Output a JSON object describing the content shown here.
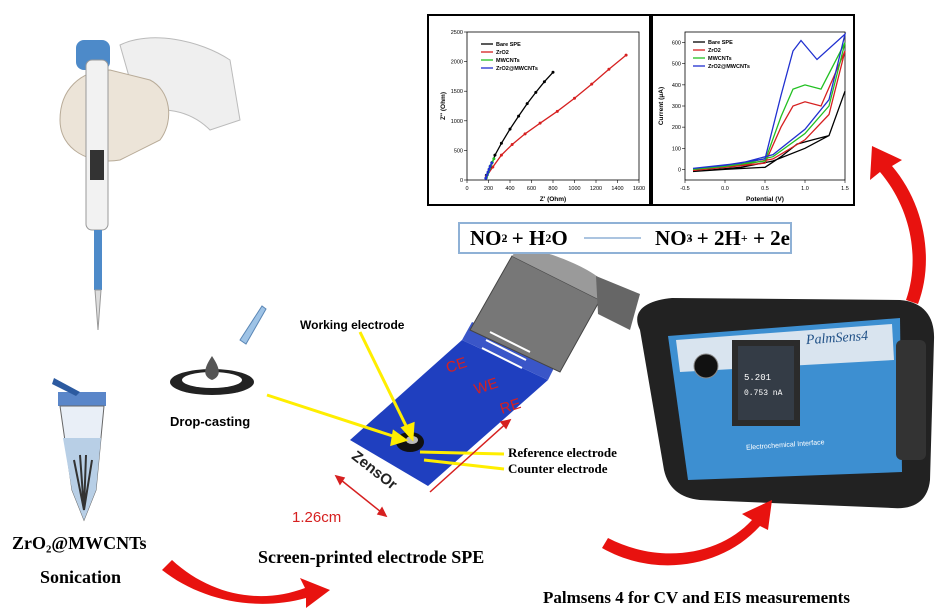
{
  "equation": {
    "left": "NO",
    "left_sub": "2",
    "left_sup": "-",
    "plus1": " + H",
    "h2o_sub": "2",
    "o": "O",
    "right": "NO",
    "right_sub": "3",
    "right_sup": "-",
    "plus2": " + 2H",
    "h_sup": "+",
    "tail": " + 2e"
  },
  "labels": {
    "working_electrode": "Working electrode",
    "drop_casting": "Drop-casting",
    "reference_electrode": "Reference electrode",
    "counter_electrode": "Counter electrode",
    "ce": "CE",
    "we": "WE",
    "re": "RE",
    "dimension": "1.26cm",
    "brand": "ZensOr",
    "material": "ZrO₂@MWCNTs",
    "sonication": "Sonication",
    "spe": "Screen-printed electrode SPE",
    "palmsens": "Palmsens 4 for CV and EIS measurements",
    "device_brand": "PalmSens4",
    "device_subtitle": "Electrochemical Interface",
    "device_readout1": "5.201",
    "device_readout2": "0.753 nA"
  },
  "colors": {
    "arrow_red": "#e8120f",
    "arrow_yellow": "#ffee00",
    "strip_blue": "#1f3fbf",
    "device_blue": "#3d8fd1"
  },
  "chart_data": [
    {
      "type": "scatter",
      "xlabel": "Z' (Ohm)",
      "ylabel": "Z'' (Ohm)",
      "xlim": [
        0,
        1600
      ],
      "ylim": [
        0,
        2500
      ],
      "xticks": [
        "0",
        "200",
        "400",
        "600",
        "800",
        "1000",
        "1200",
        "1400",
        "1600"
      ],
      "yticks": [
        "0",
        "500",
        "1000",
        "1500",
        "2000",
        "2500"
      ],
      "series": [
        {
          "name": "Bare SPE",
          "color": "#000000",
          "x": [
            180,
            220,
            260,
            320,
            400,
            480,
            560,
            640,
            720,
            800
          ],
          "y": [
            80,
            220,
            420,
            620,
            860,
            1080,
            1290,
            1480,
            1660,
            1820
          ]
        },
        {
          "name": "ZrO2",
          "color": "#d62020",
          "x": [
            180,
            240,
            320,
            420,
            540,
            680,
            840,
            1000,
            1160,
            1320,
            1480
          ],
          "y": [
            60,
            220,
            420,
            600,
            780,
            960,
            1160,
            1380,
            1620,
            1870,
            2110
          ]
        },
        {
          "name": "MWCNTs",
          "color": "#22c022",
          "x": [
            180,
            190,
            200,
            210,
            220,
            235,
            250
          ],
          "y": [
            40,
            90,
            140,
            190,
            240,
            300,
            360
          ]
        },
        {
          "name": "ZrO2@MWCNTs",
          "color": "#2030d0",
          "x": [
            175,
            185,
            195,
            205,
            215,
            230
          ],
          "y": [
            30,
            80,
            130,
            180,
            230,
            290
          ]
        }
      ]
    },
    {
      "type": "line",
      "xlabel": "Potential (V)",
      "ylabel": "Current (μA)",
      "xlim": [
        -0.5,
        1.5
      ],
      "ylim": [
        -50,
        650
      ],
      "xticks": [
        "-0.5",
        "0.0",
        "0.5",
        "1.0",
        "1.5"
      ],
      "yticks": [
        "0",
        "100",
        "200",
        "300",
        "400",
        "500",
        "600"
      ],
      "series": [
        {
          "name": "Bare SPE",
          "color": "#000000",
          "x": [
            -0.4,
            0.0,
            0.5,
            0.7,
            0.9,
            1.1,
            1.3,
            1.5,
            1.3,
            1.0,
            0.6,
            0.2,
            -0.4
          ],
          "y": [
            -10,
            0,
            10,
            60,
            120,
            140,
            160,
            370,
            160,
            100,
            40,
            10,
            -10
          ]
        },
        {
          "name": "ZrO2",
          "color": "#d62020",
          "x": [
            -0.4,
            0.0,
            0.5,
            0.7,
            0.85,
            1.0,
            1.2,
            1.5,
            1.3,
            1.0,
            0.6,
            0.2,
            -0.4
          ],
          "y": [
            -5,
            10,
            30,
            200,
            300,
            320,
            300,
            560,
            260,
            140,
            50,
            20,
            -5
          ]
        },
        {
          "name": "MWCNTs",
          "color": "#22c022",
          "x": [
            -0.4,
            0.0,
            0.5,
            0.7,
            0.85,
            1.0,
            1.2,
            1.5,
            1.3,
            1.0,
            0.6,
            0.2,
            -0.4
          ],
          "y": [
            0,
            15,
            40,
            250,
            380,
            400,
            380,
            600,
            300,
            170,
            60,
            25,
            0
          ]
        },
        {
          "name": "ZrO2@MWCNTs",
          "color": "#2030d0",
          "x": [
            -0.4,
            0.0,
            0.5,
            0.7,
            0.85,
            0.95,
            1.15,
            1.5,
            1.3,
            1.0,
            0.6,
            0.2,
            -0.4
          ],
          "y": [
            5,
            20,
            50,
            350,
            560,
            610,
            520,
            640,
            330,
            190,
            70,
            30,
            5
          ]
        }
      ]
    }
  ]
}
